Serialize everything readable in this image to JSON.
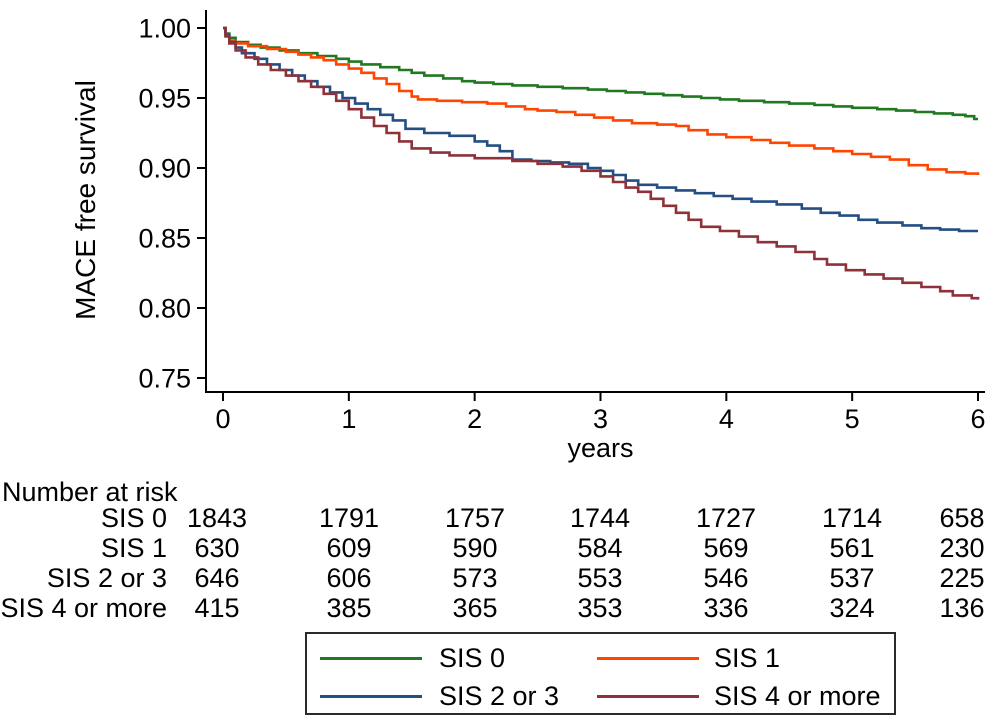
{
  "chart_data": {
    "type": "line",
    "subtype": "kaplan-meier-step",
    "title": "",
    "xlabel": "years",
    "ylabel": "MACE free survival",
    "xlim": [
      0,
      6
    ],
    "ylim": [
      0.75,
      1.0
    ],
    "x_ticks": [
      0,
      1,
      2,
      3,
      4,
      5,
      6
    ],
    "y_ticks": [
      {
        "v": 1.0,
        "label": "1.00"
      },
      {
        "v": 0.95,
        "label": "0.95"
      },
      {
        "v": 0.9,
        "label": "0.90"
      },
      {
        "v": 0.85,
        "label": "0.85"
      },
      {
        "v": 0.8,
        "label": "0.80"
      },
      {
        "v": 0.75,
        "label": "0.75"
      }
    ],
    "grid": false,
    "legend_position": "bottom",
    "axis_color": "#000000",
    "series": [
      {
        "name": "SIS 0",
        "color": "#217821",
        "steps": [
          [
            0,
            1.0
          ],
          [
            0.02,
            0.996
          ],
          [
            0.05,
            0.993
          ],
          [
            0.1,
            0.99
          ],
          [
            0.2,
            0.988
          ],
          [
            0.3,
            0.986
          ],
          [
            0.45,
            0.984
          ],
          [
            0.6,
            0.982
          ],
          [
            0.75,
            0.98
          ],
          [
            0.9,
            0.978
          ],
          [
            1.0,
            0.976
          ],
          [
            1.1,
            0.974
          ],
          [
            1.25,
            0.972
          ],
          [
            1.4,
            0.97
          ],
          [
            1.5,
            0.968
          ],
          [
            1.6,
            0.966
          ],
          [
            1.75,
            0.964
          ],
          [
            1.9,
            0.962
          ],
          [
            2.0,
            0.961
          ],
          [
            2.15,
            0.96
          ],
          [
            2.3,
            0.959
          ],
          [
            2.5,
            0.958
          ],
          [
            2.7,
            0.957
          ],
          [
            2.9,
            0.956
          ],
          [
            3.05,
            0.955
          ],
          [
            3.2,
            0.954
          ],
          [
            3.35,
            0.953
          ],
          [
            3.5,
            0.952
          ],
          [
            3.65,
            0.951
          ],
          [
            3.8,
            0.95
          ],
          [
            3.95,
            0.949
          ],
          [
            4.1,
            0.948
          ],
          [
            4.3,
            0.947
          ],
          [
            4.5,
            0.946
          ],
          [
            4.7,
            0.945
          ],
          [
            4.85,
            0.944
          ],
          [
            5.0,
            0.943
          ],
          [
            5.2,
            0.942
          ],
          [
            5.35,
            0.941
          ],
          [
            5.5,
            0.94
          ],
          [
            5.65,
            0.939
          ],
          [
            5.8,
            0.938
          ],
          [
            5.9,
            0.937
          ],
          [
            5.97,
            0.935
          ],
          [
            6.0,
            0.935
          ]
        ]
      },
      {
        "name": "SIS 1",
        "color": "#FF4500",
        "steps": [
          [
            0,
            1.0
          ],
          [
            0.02,
            0.995
          ],
          [
            0.05,
            0.991
          ],
          [
            0.1,
            0.989
          ],
          [
            0.2,
            0.987
          ],
          [
            0.35,
            0.985
          ],
          [
            0.5,
            0.983
          ],
          [
            0.6,
            0.981
          ],
          [
            0.7,
            0.979
          ],
          [
            0.8,
            0.977
          ],
          [
            0.9,
            0.974
          ],
          [
            1.0,
            0.971
          ],
          [
            1.1,
            0.968
          ],
          [
            1.2,
            0.964
          ],
          [
            1.3,
            0.96
          ],
          [
            1.4,
            0.955
          ],
          [
            1.5,
            0.951
          ],
          [
            1.55,
            0.949
          ],
          [
            1.7,
            0.948
          ],
          [
            1.9,
            0.947
          ],
          [
            2.1,
            0.946
          ],
          [
            2.25,
            0.944
          ],
          [
            2.4,
            0.942
          ],
          [
            2.5,
            0.941
          ],
          [
            2.65,
            0.94
          ],
          [
            2.8,
            0.938
          ],
          [
            2.95,
            0.936
          ],
          [
            3.1,
            0.934
          ],
          [
            3.25,
            0.932
          ],
          [
            3.45,
            0.931
          ],
          [
            3.6,
            0.93
          ],
          [
            3.7,
            0.927
          ],
          [
            3.85,
            0.924
          ],
          [
            4.0,
            0.922
          ],
          [
            4.2,
            0.92
          ],
          [
            4.35,
            0.918
          ],
          [
            4.5,
            0.916
          ],
          [
            4.7,
            0.914
          ],
          [
            4.85,
            0.912
          ],
          [
            5.0,
            0.91
          ],
          [
            5.15,
            0.908
          ],
          [
            5.3,
            0.906
          ],
          [
            5.45,
            0.902
          ],
          [
            5.6,
            0.899
          ],
          [
            5.75,
            0.897
          ],
          [
            5.9,
            0.896
          ],
          [
            6.0,
            0.895
          ]
        ]
      },
      {
        "name": "SIS 2 or 3",
        "color": "#254F82",
        "steps": [
          [
            0,
            1.0
          ],
          [
            0.02,
            0.995
          ],
          [
            0.05,
            0.99
          ],
          [
            0.1,
            0.986
          ],
          [
            0.15,
            0.982
          ],
          [
            0.25,
            0.978
          ],
          [
            0.35,
            0.974
          ],
          [
            0.45,
            0.97
          ],
          [
            0.55,
            0.966
          ],
          [
            0.65,
            0.962
          ],
          [
            0.75,
            0.958
          ],
          [
            0.85,
            0.954
          ],
          [
            0.95,
            0.95
          ],
          [
            1.05,
            0.946
          ],
          [
            1.15,
            0.942
          ],
          [
            1.25,
            0.938
          ],
          [
            1.35,
            0.934
          ],
          [
            1.45,
            0.928
          ],
          [
            1.6,
            0.925
          ],
          [
            1.8,
            0.923
          ],
          [
            2.0,
            0.919
          ],
          [
            2.1,
            0.916
          ],
          [
            2.2,
            0.912
          ],
          [
            2.3,
            0.906
          ],
          [
            2.45,
            0.905
          ],
          [
            2.6,
            0.904
          ],
          [
            2.75,
            0.903
          ],
          [
            2.9,
            0.9
          ],
          [
            3.0,
            0.898
          ],
          [
            3.1,
            0.895
          ],
          [
            3.2,
            0.891
          ],
          [
            3.3,
            0.888
          ],
          [
            3.45,
            0.886
          ],
          [
            3.6,
            0.884
          ],
          [
            3.75,
            0.882
          ],
          [
            3.9,
            0.88
          ],
          [
            4.05,
            0.878
          ],
          [
            4.2,
            0.876
          ],
          [
            4.4,
            0.874
          ],
          [
            4.6,
            0.871
          ],
          [
            4.75,
            0.868
          ],
          [
            4.9,
            0.866
          ],
          [
            5.05,
            0.863
          ],
          [
            5.2,
            0.861
          ],
          [
            5.4,
            0.859
          ],
          [
            5.55,
            0.857
          ],
          [
            5.7,
            0.856
          ],
          [
            5.85,
            0.855
          ],
          [
            6.0,
            0.855
          ]
        ]
      },
      {
        "name": "SIS 4 or more",
        "color": "#8E3139",
        "steps": [
          [
            0,
            1.0
          ],
          [
            0.02,
            0.994
          ],
          [
            0.05,
            0.989
          ],
          [
            0.1,
            0.984
          ],
          [
            0.18,
            0.979
          ],
          [
            0.28,
            0.974
          ],
          [
            0.38,
            0.97
          ],
          [
            0.5,
            0.966
          ],
          [
            0.6,
            0.962
          ],
          [
            0.7,
            0.958
          ],
          [
            0.8,
            0.953
          ],
          [
            0.9,
            0.948
          ],
          [
            1.0,
            0.942
          ],
          [
            1.1,
            0.936
          ],
          [
            1.2,
            0.93
          ],
          [
            1.3,
            0.925
          ],
          [
            1.4,
            0.919
          ],
          [
            1.5,
            0.914
          ],
          [
            1.65,
            0.911
          ],
          [
            1.8,
            0.909
          ],
          [
            2.0,
            0.907
          ],
          [
            2.3,
            0.905
          ],
          [
            2.5,
            0.903
          ],
          [
            2.7,
            0.901
          ],
          [
            2.85,
            0.898
          ],
          [
            3.0,
            0.894
          ],
          [
            3.1,
            0.89
          ],
          [
            3.2,
            0.886
          ],
          [
            3.3,
            0.883
          ],
          [
            3.4,
            0.878
          ],
          [
            3.5,
            0.873
          ],
          [
            3.6,
            0.868
          ],
          [
            3.7,
            0.863
          ],
          [
            3.8,
            0.858
          ],
          [
            3.95,
            0.855
          ],
          [
            4.1,
            0.851
          ],
          [
            4.25,
            0.847
          ],
          [
            4.4,
            0.844
          ],
          [
            4.55,
            0.84
          ],
          [
            4.7,
            0.835
          ],
          [
            4.8,
            0.831
          ],
          [
            4.95,
            0.827
          ],
          [
            5.1,
            0.824
          ],
          [
            5.25,
            0.821
          ],
          [
            5.4,
            0.818
          ],
          [
            5.55,
            0.815
          ],
          [
            5.7,
            0.812
          ],
          [
            5.8,
            0.809
          ],
          [
            5.95,
            0.807
          ],
          [
            6.0,
            0.806
          ]
        ]
      }
    ]
  },
  "risk_table": {
    "title": "Number at risk",
    "time_points": [
      0,
      1,
      2,
      3,
      4,
      5,
      6
    ],
    "rows": [
      {
        "label": "SIS 0",
        "counts": [
          "1843",
          "1791",
          "1757",
          "1744",
          "1727",
          "1714",
          "658"
        ]
      },
      {
        "label": "SIS 1",
        "counts": [
          "630",
          "609",
          "590",
          "584",
          "569",
          "561",
          "230"
        ]
      },
      {
        "label": "SIS 2 or 3",
        "counts": [
          "646",
          "606",
          "573",
          "553",
          "546",
          "537",
          "225"
        ]
      },
      {
        "label": "SIS 4 or more",
        "counts": [
          "415",
          "385",
          "365",
          "353",
          "336",
          "324",
          "136"
        ]
      }
    ]
  },
  "legend": {
    "entries": [
      {
        "label": "SIS 0",
        "color": "#217821"
      },
      {
        "label": "SIS 1",
        "color": "#FF4500"
      },
      {
        "label": "SIS 2 or 3",
        "color": "#254F82"
      },
      {
        "label": "SIS 4 or more",
        "color": "#8E3139"
      }
    ]
  }
}
